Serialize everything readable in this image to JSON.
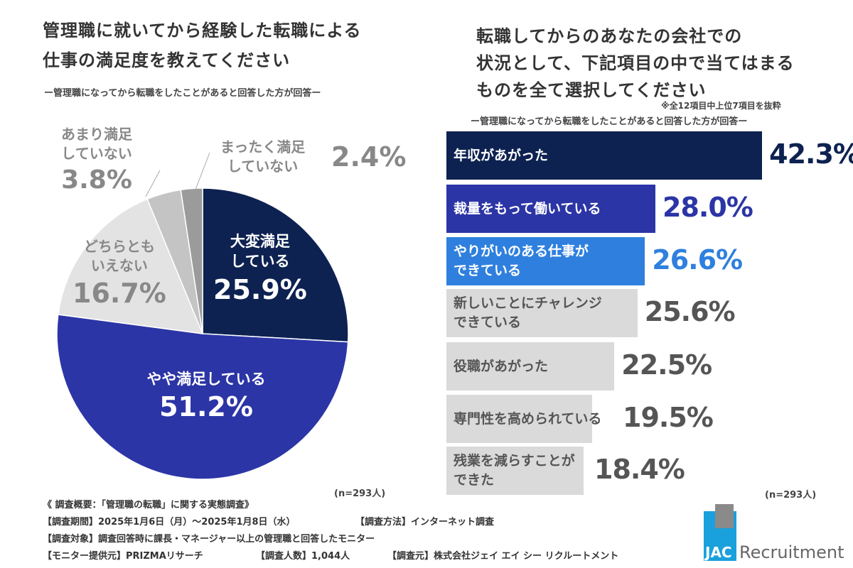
{
  "chart_data": [
    {
      "type": "pie",
      "title": "管理職に就いてから経験した転職による仕事の満足度を教えてください",
      "subtitle": "ー管理職になってから転職をしたことがあると回答した方が回答ー",
      "slices": [
        {
          "label": "大変満足している",
          "value": 25.9,
          "display": "25.9%",
          "color": "#0d2251"
        },
        {
          "label": "やや満足している",
          "value": 51.2,
          "display": "51.2%",
          "color": "#2c35a6"
        },
        {
          "label": "どちらともいえない",
          "value": 16.7,
          "display": "16.7%",
          "color": "#e3e3e3"
        },
        {
          "label": "あまり満足していない",
          "value": 3.8,
          "display": "3.8%",
          "color": "#c4c4c4"
        },
        {
          "label": "まったく満足していない",
          "value": 2.4,
          "display": "2.4%",
          "color": "#9b9b9b"
        }
      ],
      "n": "(n=293人)"
    },
    {
      "type": "bar",
      "orientation": "horizontal",
      "title": "転職してからのあなたの会社での状況として、下記項目の中で当てはまるものを全て選択してください",
      "note": "※全12項目中上位7項目を抜粋",
      "subtitle": "ー管理職になってから転職をしたことがあると回答した方が回答ー",
      "categories": [
        "年収があがった",
        "裁量をもって働いている",
        "やりがいのある仕事ができている",
        "新しいことにチャレンジできている",
        "役職があがった",
        "専門性を高められている",
        "残業を減らすことができた"
      ],
      "values": [
        42.3,
        28.0,
        26.6,
        25.6,
        22.5,
        19.5,
        18.4
      ],
      "labels": [
        "42.3%",
        "28.0%",
        "26.6%",
        "25.6%",
        "22.5%",
        "19.5%",
        "18.4%"
      ],
      "colors": [
        "#0d2251",
        "#2c35a6",
        "#2f80de",
        "#dadada",
        "#dadada",
        "#dadada",
        "#dadada"
      ],
      "n": "(n=293人)"
    }
  ],
  "left": {
    "title1": "管理職に就いてから経験した転職による",
    "title2": "仕事の満足度を教えてください",
    "pie_lines": {
      "s0a": "大変満足",
      "s0b": "している",
      "s1a": "やや満足している",
      "s2a": "どちらとも",
      "s2b": "いえない",
      "s3a": "あまり満足",
      "s3b": "していない",
      "s4a": "まったく満足",
      "s4b": "していない"
    }
  },
  "right": {
    "title1": "転職してからのあなたの会社での",
    "title2": "状況として、下記項目の中で当てはまる",
    "title3": "ものを全て選択してください",
    "bar_lines": [
      [
        "年収があがった"
      ],
      [
        "裁量をもって働いている"
      ],
      [
        "やりがいのある仕事が",
        "できている"
      ],
      [
        "新しいことにチャレンジ",
        "できている"
      ],
      [
        "役職があがった"
      ],
      [
        "専門性を高められている"
      ],
      [
        "残業を減らすことが",
        "できた"
      ]
    ]
  },
  "footer": {
    "l1": "《 調査概要：「管理職の転職」に関する実態調査》",
    "l2a": "【調査期間】2025年1月6日（月）～2025年1月8日（水）",
    "l2b": "【調査方法】インターネット調査",
    "l3": "【調査対象】調査回答時に課長・マネージャー以上の管理職と回答したモニター",
    "l4a": "【モニター提供元】PRIZMAリサーチ",
    "l4b": "【調査人数】1,044人",
    "l4c": "【調査元】株式会社ジェイ エイ シー リクルートメント"
  },
  "logo": {
    "text1": "JAC",
    "text2": "Recruitment"
  }
}
